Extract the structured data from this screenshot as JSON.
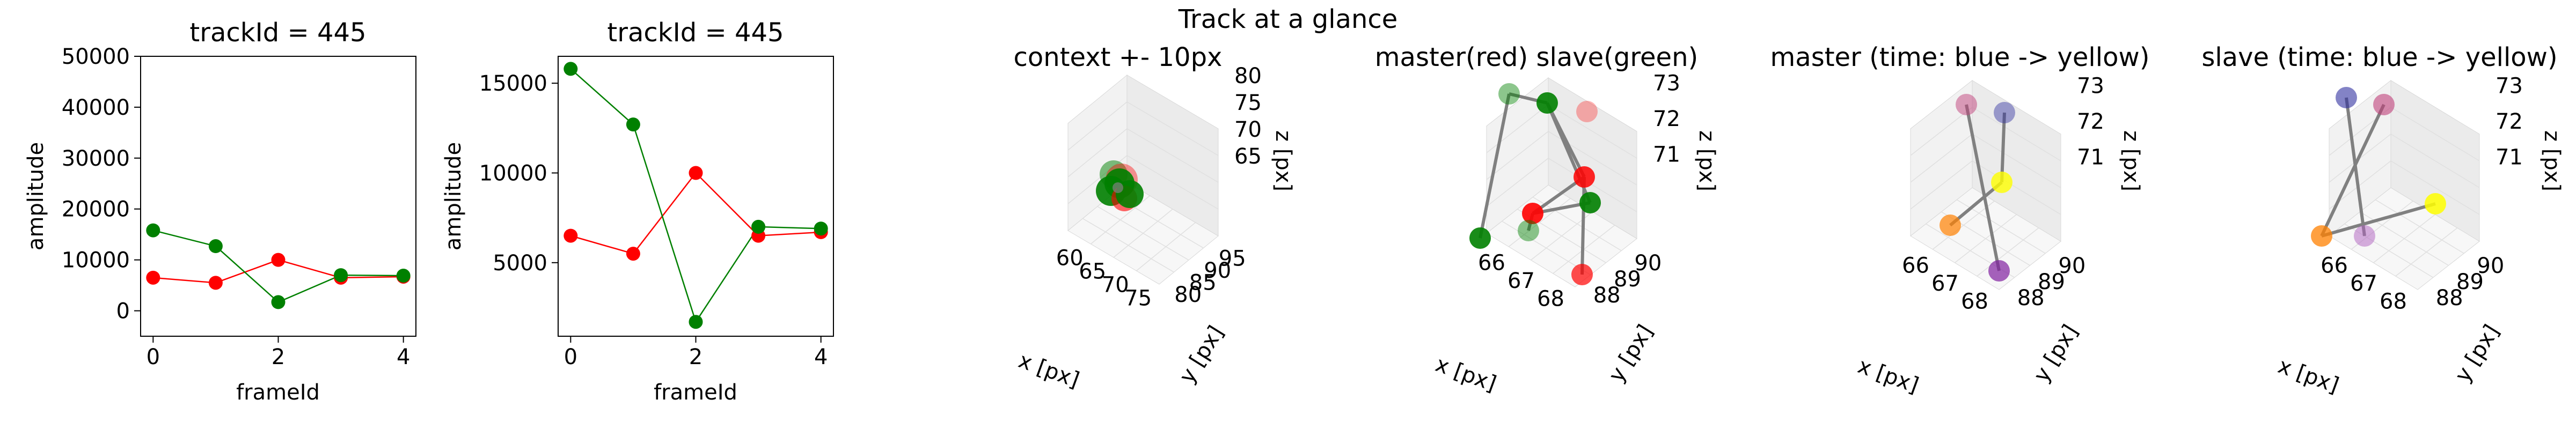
{
  "figure": {
    "suptitle": "Track at a glance"
  },
  "chart_data": [
    {
      "type": "line",
      "title": "trackId = 445",
      "xlabel": "frameId",
      "ylabel": "amplitude",
      "x": [
        0,
        1,
        2,
        3,
        4
      ],
      "xticks": [
        "0",
        "2",
        "4"
      ],
      "yticks": [
        "0",
        "10000",
        "20000",
        "30000",
        "40000",
        "50000"
      ],
      "xlim": [
        -0.2,
        4.2
      ],
      "ylim": [
        -5000,
        50000
      ],
      "series": [
        {
          "color": "#ff0000",
          "values": [
            6500,
            5500,
            10000,
            6500,
            6700
          ]
        },
        {
          "color": "#008000",
          "values": [
            15800,
            12700,
            1700,
            7000,
            6900
          ]
        }
      ]
    },
    {
      "type": "line",
      "title": "trackId = 445",
      "xlabel": "frameId",
      "ylabel": "amplitude",
      "x": [
        0,
        1,
        2,
        3,
        4
      ],
      "xticks": [
        "0",
        "2",
        "4"
      ],
      "yticks": [
        "5000",
        "10000",
        "15000"
      ],
      "xlim": [
        -0.2,
        4.2
      ],
      "ylim": [
        900,
        16500
      ],
      "series": [
        {
          "color": "#ff0000",
          "values": [
            6500,
            5500,
            10000,
            6500,
            6700
          ]
        },
        {
          "color": "#008000",
          "values": [
            15800,
            12700,
            1700,
            7000,
            6900
          ]
        }
      ]
    },
    {
      "type": "scatter",
      "title": "context +- 10px",
      "xlabel": "x [px]",
      "ylabel": "y [px]",
      "zlabel": "z [px]",
      "xticks": [
        "60",
        "65",
        "70",
        "75"
      ],
      "yticks": [
        "80",
        "85",
        "90",
        "95"
      ],
      "zticks": [
        "65",
        "70",
        "75",
        "80"
      ],
      "points_note": "cluster of red and green markers",
      "colors": [
        "#ff0000",
        "#008000"
      ]
    },
    {
      "type": "scatter",
      "title": "master(red) slave(green)",
      "xlabel": "x [px]",
      "ylabel": "y [px]",
      "zlabel": "z [px]",
      "xticks": [
        "66",
        "67",
        "68"
      ],
      "yticks": [
        "88",
        "89",
        "90"
      ],
      "zticks": [
        "71",
        "72",
        "73"
      ],
      "colors": [
        "#ff0000",
        "#008000"
      ]
    },
    {
      "type": "scatter",
      "title": "master (time: blue -> yellow)",
      "xlabel": "x [px]",
      "ylabel": "y [px]",
      "zlabel": "z [px]",
      "xticks": [
        "66",
        "67",
        "68"
      ],
      "yticks": [
        "88",
        "89",
        "90"
      ],
      "zticks": [
        "71",
        "72",
        "73"
      ]
    },
    {
      "type": "scatter",
      "title": "slave (time: blue -> yellow)",
      "xlabel": "x [px]",
      "ylabel": "y [px]",
      "zlabel": "z [px]",
      "xticks": [
        "66",
        "67",
        "68"
      ],
      "yticks": [
        "88",
        "89",
        "90"
      ],
      "zticks": [
        "71",
        "72",
        "73"
      ]
    }
  ]
}
